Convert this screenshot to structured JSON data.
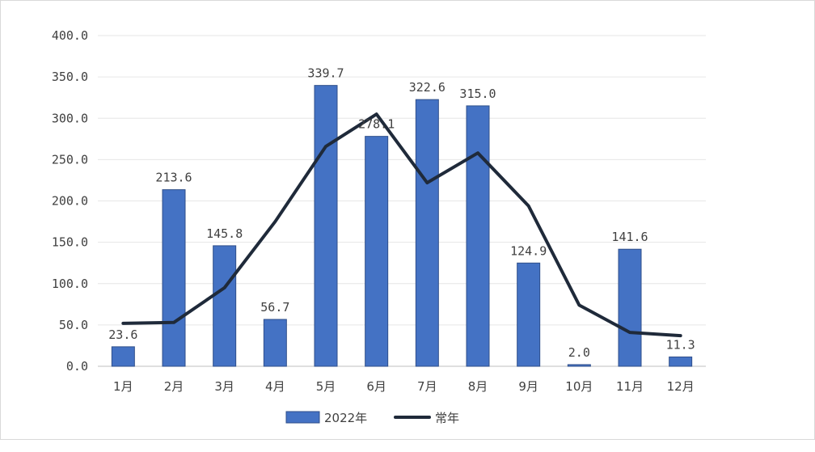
{
  "chart_data": {
    "type": "bar",
    "categories": [
      "1月",
      "2月",
      "3月",
      "4月",
      "5月",
      "6月",
      "7月",
      "8月",
      "9月",
      "10月",
      "11月",
      "12月"
    ],
    "series": [
      {
        "name": "2022年",
        "type": "bar",
        "color": "#4472c4",
        "values": [
          23.6,
          213.6,
          145.8,
          56.7,
          339.7,
          278.1,
          322.6,
          315.0,
          124.9,
          2.0,
          141.6,
          11.3
        ],
        "labels": [
          "23.6",
          "213.6",
          "145.8",
          "56.7",
          "339.7",
          "278.1",
          "322.6",
          "315.0",
          "124.9",
          "2.0",
          "141.6",
          "11.3"
        ]
      },
      {
        "name": "常年",
        "type": "line",
        "color": "#1f2a3a",
        "values": [
          52,
          53,
          95,
          175,
          266,
          305,
          222,
          258,
          194,
          74,
          41,
          37
        ]
      }
    ],
    "yticks": [
      "0.0",
      "50.0",
      "100.0",
      "150.0",
      "200.0",
      "250.0",
      "300.0",
      "350.0",
      "400.0"
    ],
    "ylim": [
      0,
      400
    ],
    "grid": true,
    "legend": "bottom",
    "title": "",
    "xlabel": "",
    "ylabel": ""
  }
}
